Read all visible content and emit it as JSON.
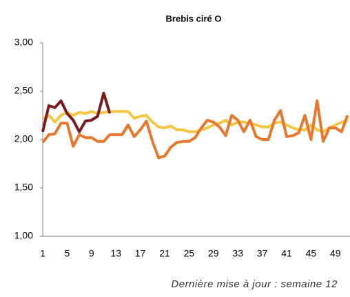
{
  "chart_data": {
    "type": "line",
    "title": "Brebis ciré O",
    "categories": [
      "1",
      null,
      null,
      null,
      "5",
      null,
      null,
      null,
      "9",
      null,
      null,
      null,
      "13",
      null,
      null,
      null,
      "17",
      null,
      null,
      null,
      "21",
      null,
      null,
      null,
      "25",
      null,
      null,
      null,
      "29",
      null,
      null,
      null,
      "33",
      null,
      null,
      null,
      "37",
      null,
      null,
      null,
      "41",
      null,
      null,
      null,
      "45",
      null,
      null,
      null,
      "49",
      null,
      null
    ],
    "series": [
      {
        "color": "#f7c544",
        "values": [
          2.22,
          2.25,
          2.18,
          2.25,
          2.28,
          2.25,
          2.28,
          2.27,
          2.29,
          2.27,
          2.28,
          2.29,
          2.29,
          2.29,
          2.29,
          2.22,
          2.24,
          2.25,
          2.18,
          2.13,
          2.12,
          2.14,
          2.1,
          2.1,
          2.08,
          2.08,
          2.1,
          2.12,
          2.15,
          2.17,
          2.2,
          2.15,
          2.18,
          2.18,
          2.17,
          2.15,
          2.13,
          2.13,
          2.17,
          2.18,
          2.15,
          2.12,
          2.1,
          2.1,
          2.15,
          2.1,
          2.08,
          2.12,
          2.15,
          2.18,
          2.2
        ]
      },
      {
        "color": "#e8772e",
        "values": [
          1.97,
          2.05,
          2.06,
          2.17,
          2.17,
          1.93,
          2.05,
          2.02,
          2.02,
          1.98,
          1.98,
          2.05,
          2.05,
          2.05,
          2.15,
          2.03,
          2.1,
          2.19,
          1.98,
          1.81,
          1.83,
          1.92,
          1.97,
          1.98,
          1.98,
          2.02,
          2.12,
          2.2,
          2.18,
          2.13,
          2.04,
          2.25,
          2.2,
          2.08,
          2.2,
          2.03,
          2.0,
          2.0,
          2.2,
          2.3,
          2.03,
          2.04,
          2.07,
          2.25,
          2.0,
          2.4,
          1.98,
          2.12,
          2.12,
          2.08,
          2.25
        ]
      },
      {
        "color": "#7b1a1c",
        "values": [
          2.08,
          2.35,
          2.33,
          2.4,
          2.27,
          2.2,
          2.08,
          2.19,
          2.2,
          2.24,
          2.48,
          2.27,
          null,
          null,
          null,
          null,
          null,
          null,
          null,
          null,
          null,
          null,
          null,
          null,
          null,
          null,
          null,
          null,
          null,
          null,
          null,
          null,
          null,
          null,
          null,
          null,
          null,
          null,
          null,
          null,
          null,
          null,
          null,
          null,
          null,
          null,
          null,
          null,
          null,
          null,
          null
        ]
      }
    ],
    "ylim": [
      1,
      3
    ],
    "yticks": [
      {
        "value": 1,
        "label": "1,00"
      },
      {
        "value": 1.5,
        "label": "1,50"
      },
      {
        "value": 2,
        "label": "2,00"
      },
      {
        "value": 2.5,
        "label": "2,50"
      },
      {
        "value": 3,
        "label": "3,00"
      }
    ],
    "grid": false,
    "footer": "Dernière mise à jour : semaine 12"
  }
}
